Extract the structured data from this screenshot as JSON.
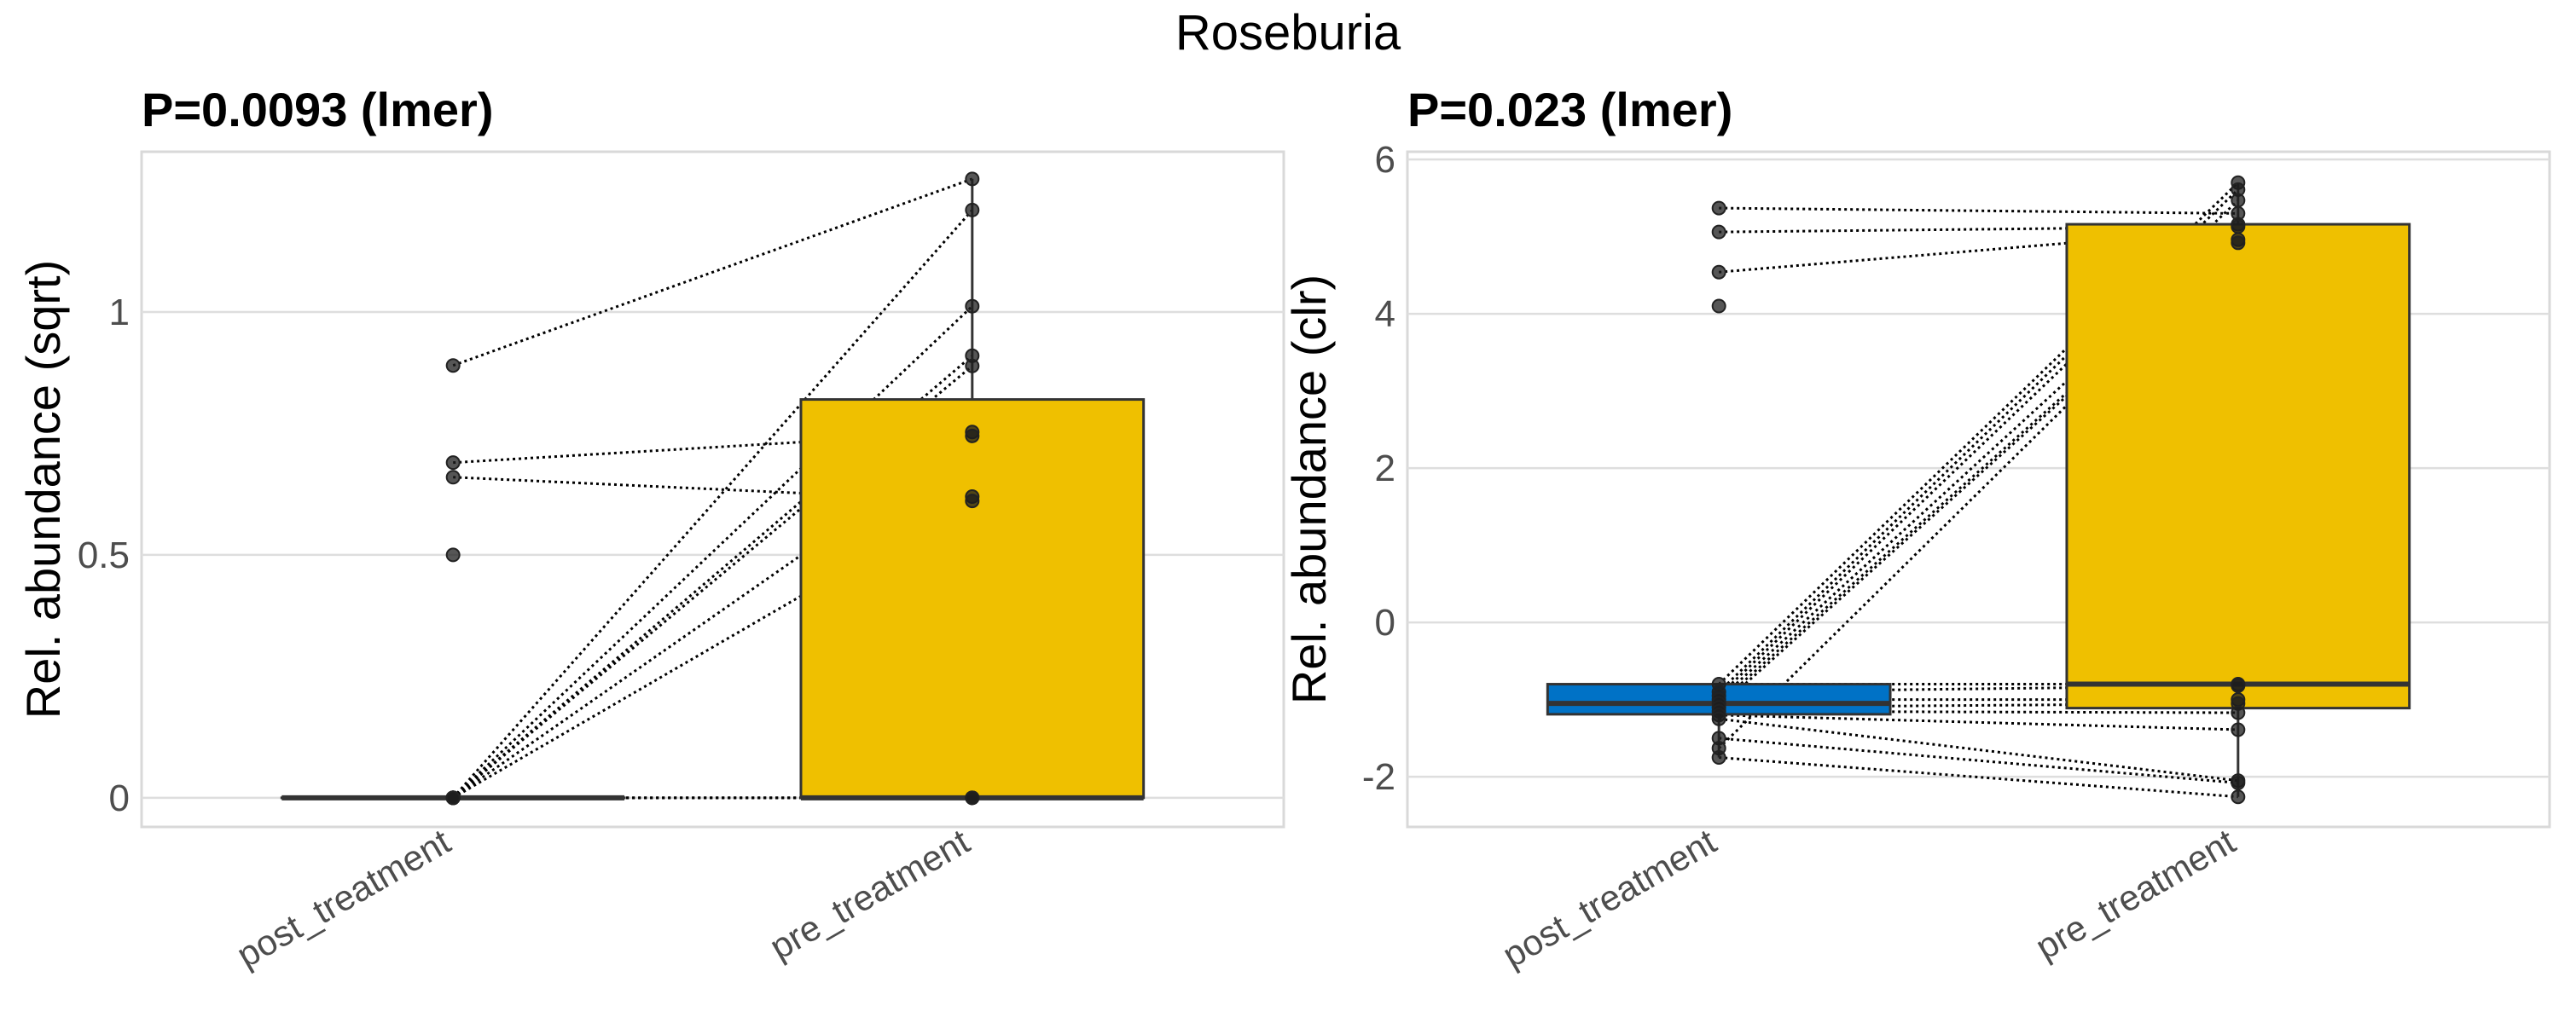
{
  "chart_data": {
    "title": "Roseburia",
    "panels": [
      {
        "type": "box",
        "title": "P=0.0093 (lmer)",
        "ylabel": "Rel. abundance (sqrt)",
        "xlabel": "",
        "categories": [
          "post_treatment",
          "pre_treatment"
        ],
        "ylim": [
          -0.06,
          1.33
        ],
        "yticks": [
          0,
          0.5,
          1
        ],
        "ytick_labels": [
          "0",
          "0.5",
          "1"
        ],
        "grid": true,
        "boxes": [
          {
            "category": "post_treatment",
            "color": "#0072C6",
            "q1": 0,
            "median": 0,
            "q3": 0,
            "whisker_low": 0,
            "whisker_high": 0
          },
          {
            "category": "pre_treatment",
            "color": "#EFC000",
            "q1": 0,
            "median": 0,
            "q3": 0.82,
            "whisker_low": 0,
            "whisker_high": 1.274
          }
        ],
        "points": {
          "post_treatment": [
            0.89,
            0.69,
            0.66,
            0.5,
            0,
            0,
            0,
            0,
            0,
            0,
            0,
            0,
            0,
            0
          ],
          "pre_treatment": [
            1.274,
            1.21,
            1.012,
            0.91,
            0.889,
            0.753,
            0.745,
            0.62,
            0.611,
            0,
            0,
            0
          ]
        },
        "pairs": [
          [
            0.89,
            1.274
          ],
          [
            0.69,
            0.753
          ],
          [
            0.66,
            0.611
          ],
          [
            0,
            1.21
          ],
          [
            0,
            1.012
          ],
          [
            0,
            0.91
          ],
          [
            0,
            0.889
          ],
          [
            0,
            0.745
          ],
          [
            0,
            0.62
          ],
          [
            0,
            0
          ],
          [
            0,
            0
          ],
          [
            0,
            0
          ]
        ]
      },
      {
        "type": "box",
        "title": "P=0.023 (lmer)",
        "ylabel": "Rel. abundance (clr)",
        "xlabel": "",
        "categories": [
          "post_treatment",
          "pre_treatment"
        ],
        "ylim": [
          -2.65,
          6.1
        ],
        "yticks": [
          -2,
          0,
          2,
          4,
          6
        ],
        "ytick_labels": [
          "-2",
          "0",
          "2",
          "4",
          "6"
        ],
        "grid": true,
        "boxes": [
          {
            "category": "post_treatment",
            "color": "#0072C6",
            "q1": -1.19,
            "median": -1.05,
            "q3": -0.8,
            "whisker_low": -1.75,
            "whisker_high": -0.8
          },
          {
            "category": "pre_treatment",
            "color": "#EFC000",
            "q1": -1.11,
            "median": -0.8,
            "q3": 5.16,
            "whisker_low": -2.26,
            "whisker_high": 5.7
          }
        ],
        "points": {
          "post_treatment": [
            5.37,
            5.06,
            4.54,
            4.1,
            -0.8,
            -0.9,
            -0.95,
            -1.0,
            -1.05,
            -1.1,
            -1.15,
            -1.2,
            -1.25,
            -1.5,
            -1.63,
            -1.75
          ],
          "pre_treatment": [
            5.7,
            5.61,
            5.47,
            5.3,
            5.16,
            5.13,
            4.96,
            4.92,
            -0.8,
            -0.82,
            -1.0,
            -1.05,
            -1.17,
            -1.39,
            -2.05,
            -2.08,
            -2.26
          ]
        },
        "pairs": [
          [
            5.37,
            5.3
          ],
          [
            5.06,
            5.13
          ],
          [
            4.54,
            5.1
          ],
          [
            -0.8,
            5.7
          ],
          [
            -0.9,
            5.61
          ],
          [
            -0.95,
            5.47
          ],
          [
            -1.0,
            5.16
          ],
          [
            -1.05,
            4.96
          ],
          [
            -1.1,
            4.92
          ],
          [
            -1.63,
            5.0
          ],
          [
            -0.8,
            -0.8
          ],
          [
            -0.9,
            -0.82
          ],
          [
            -1.0,
            -1.0
          ],
          [
            -1.1,
            -1.05
          ],
          [
            -1.15,
            -1.17
          ],
          [
            -1.2,
            -1.39
          ],
          [
            -1.25,
            -2.05
          ],
          [
            -1.5,
            -2.08
          ],
          [
            -1.75,
            -2.26
          ]
        ]
      }
    ]
  }
}
